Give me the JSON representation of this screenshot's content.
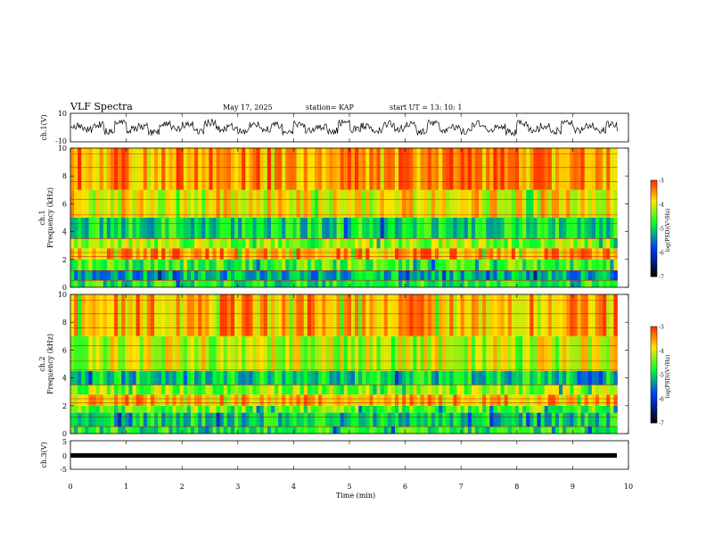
{
  "header": {
    "title": "VLF Spectra",
    "date": "May 17, 2025",
    "station": "station= KAP",
    "start": "start  UT  =   13: 10: 1"
  },
  "chart_data": [
    {
      "type": "line",
      "panel": "waveform-ch1",
      "ylabel": "ch.1(V)",
      "xlim": [
        0,
        9.8
      ],
      "ylim": [
        -10,
        10
      ],
      "yticks": [
        "10",
        "-10"
      ],
      "series": [
        {
          "values": [
            0.9,
            -1.2,
            2.3,
            -2.6,
            3.1,
            -1.5,
            0.8,
            -3.2,
            2.8,
            -0.6,
            1.9,
            -2.2,
            3.4,
            -1.1,
            0.5,
            -2.8,
            2.0,
            -0.9,
            1.4,
            -3.0,
            2.6,
            -1.8,
            0.7,
            -2.4,
            3.2,
            -1.3,
            1.1,
            -2.0,
            2.4,
            -0.8,
            1.6,
            -2.9,
            3.0,
            -1.7,
            0.6,
            -2.5,
            2.7,
            -1.0,
            1.3,
            -3.1,
            2.9,
            -1.4,
            0.9,
            -2.3,
            3.3,
            -1.6,
            1.0,
            -2.1,
            2.5,
            -0.7
          ]
        }
      ]
    },
    {
      "type": "heatmap",
      "panel": "spectrogram-ch1",
      "ylabel": "ch.1 Frequency (kHz)",
      "xlim": [
        0,
        9.8
      ],
      "ylim": [
        0,
        10
      ],
      "colorbar": {
        "label": "log(PSD)(V²/Hz)",
        "range": [
          -7,
          -3
        ],
        "ticks": [
          "-3",
          "-4",
          "-5",
          "-6",
          "-7"
        ]
      },
      "band_levels": [
        {
          "f": [
            0.0,
            0.5
          ],
          "level": -4.8
        },
        {
          "f": [
            0.5,
            1.2
          ],
          "level": -5.2
        },
        {
          "f": [
            1.2,
            2.0
          ],
          "level": -4.6
        },
        {
          "f": [
            2.0,
            2.8
          ],
          "level": -3.6
        },
        {
          "f": [
            2.8,
            3.5
          ],
          "level": -4.3
        },
        {
          "f": [
            3.5,
            5.0
          ],
          "level": -4.9
        },
        {
          "f": [
            5.0,
            7.0
          ],
          "level": -3.9
        },
        {
          "f": [
            7.0,
            10.0
          ],
          "level": -3.5
        }
      ]
    },
    {
      "type": "heatmap",
      "panel": "spectrogram-ch2",
      "ylabel": "ch.2 Frequency (kHz)",
      "xlim": [
        0,
        9.8
      ],
      "ylim": [
        0,
        10
      ],
      "colorbar": {
        "label": "log(PSD)(V²/Hz)",
        "range": [
          -7,
          -3
        ],
        "ticks": [
          "-3",
          "-4",
          "-5",
          "-6",
          "-7"
        ]
      },
      "band_levels": [
        {
          "f": [
            0.0,
            0.5
          ],
          "level": -4.8
        },
        {
          "f": [
            0.5,
            1.5
          ],
          "level": -5.0
        },
        {
          "f": [
            1.5,
            2.0
          ],
          "level": -4.5
        },
        {
          "f": [
            2.0,
            2.8
          ],
          "level": -3.7
        },
        {
          "f": [
            2.8,
            3.5
          ],
          "level": -4.3
        },
        {
          "f": [
            3.5,
            4.5
          ],
          "level": -5.0
        },
        {
          "f": [
            4.5,
            7.0
          ],
          "level": -4.1
        },
        {
          "f": [
            7.0,
            10.0
          ],
          "level": -3.6
        }
      ]
    },
    {
      "type": "line",
      "panel": "waveform-ch3",
      "ylabel": "ch.3(V)",
      "xlabel": "Time (min)",
      "xlim": [
        0,
        9.8
      ],
      "ylim": [
        -5,
        5
      ],
      "yticks": [
        "5",
        "0",
        "-5"
      ],
      "series": [
        {
          "values": [
            -0.2,
            0.2
          ]
        }
      ]
    }
  ],
  "xaxis": {
    "ticks": [
      "0",
      "1",
      "2",
      "3",
      "4",
      "5",
      "6",
      "7",
      "8",
      "9",
      "10"
    ],
    "label": "Time (min)"
  },
  "freq_ticks": [
    "0",
    "2",
    "4",
    "6",
    "8",
    "10"
  ],
  "colors": {
    "colormap": [
      "#ffffff",
      "#ff0000",
      "#ffff00",
      "#00ff00",
      "#0000ff",
      "#000000"
    ],
    "trace": "#000000"
  }
}
